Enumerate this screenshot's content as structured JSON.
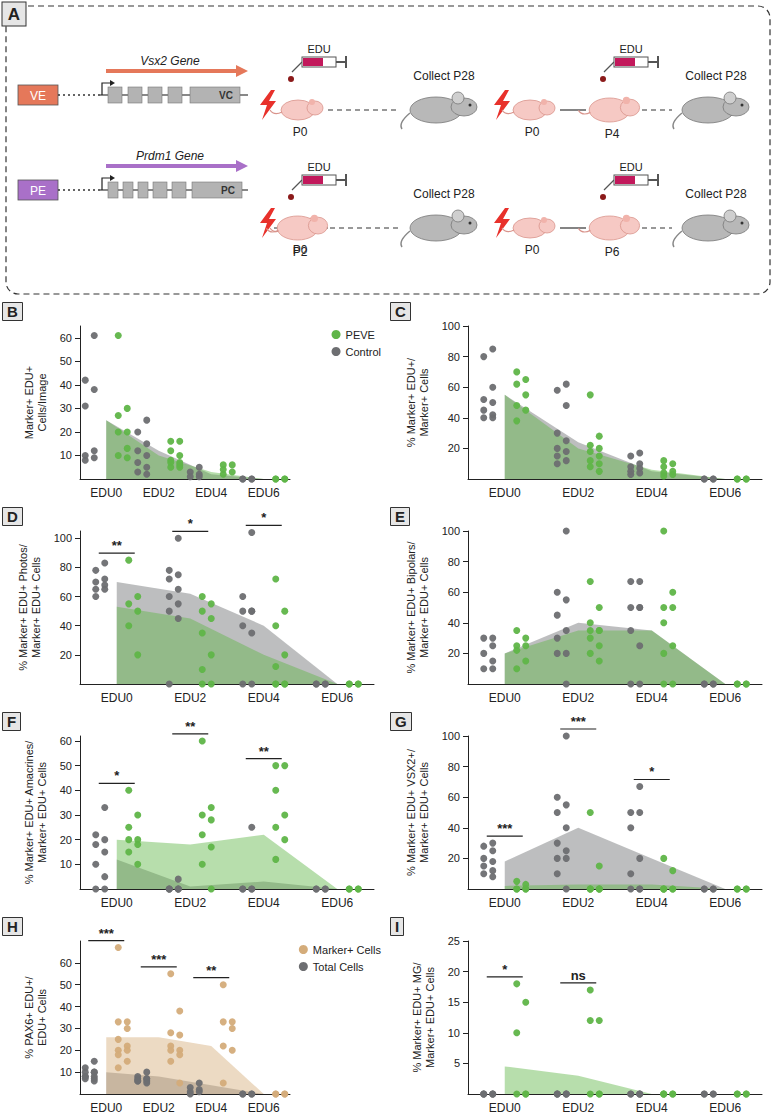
{
  "diagram": {
    "label": "A",
    "constructs": [
      {
        "enhancer": "VE",
        "gene": "Vsx2 Gene",
        "cds": "VC",
        "color": "#e5785a"
      },
      {
        "enhancer": "PE",
        "gene": "Prdm1 Gene",
        "cds": "PC",
        "color": "#a970c8"
      }
    ],
    "timelines": [
      {
        "start": "P0",
        "injection": "EDU",
        "injection_day": "P0",
        "collect": "Collect P28"
      },
      {
        "start": "P0",
        "injection": "EDU",
        "injection_day": "P4",
        "collect": "Collect P28"
      },
      {
        "start": "P0",
        "injection": "EDU",
        "injection_day": "P2",
        "collect": "Collect P28"
      },
      {
        "start": "P0",
        "injection": "EDU",
        "injection_day": "P6",
        "collect": "Collect P28"
      }
    ]
  },
  "chart_data": [
    {
      "type": "scatter",
      "panel": "B",
      "ylabel": "Marker+ EDU+\nCells/Image",
      "categories": [
        "EDU0",
        "EDU2",
        "EDU4",
        "EDU6"
      ],
      "ylim": [
        0,
        65
      ],
      "yticks": [
        10,
        20,
        30,
        40,
        50,
        60
      ],
      "grid": false,
      "legend": "top-right",
      "series": [
        {
          "name": "PEVE",
          "color": "#5fb548",
          "values": [
            [
              61,
              30,
              27,
              20,
              20,
              13,
              10,
              9
            ],
            [
              16,
              16,
              12,
              10,
              8,
              7,
              7,
              6,
              5,
              5
            ],
            [
              6,
              6,
              4,
              3,
              2
            ],
            [
              0,
              0,
              0,
              0
            ]
          ],
          "area": [
            25,
            10,
            3,
            0
          ]
        },
        {
          "name": "Control",
          "color": "#6d6e71",
          "values": [
            [
              61,
              42,
              38,
              31,
              12,
              10,
              9,
              8
            ],
            [
              25,
              20,
              15,
              12,
              10,
              7,
              5,
              3,
              2
            ],
            [
              5,
              3,
              2,
              1,
              1
            ],
            [
              0,
              0,
              0,
              0
            ]
          ],
          "area": [
            25,
            12,
            2,
            0
          ]
        }
      ],
      "annotations": []
    },
    {
      "type": "scatter",
      "panel": "C",
      "ylabel": "% Marker+ EDU+/\nMarker+ Cells",
      "categories": [
        "EDU0",
        "EDU2",
        "EDU4",
        "EDU6"
      ],
      "ylim": [
        0,
        100
      ],
      "yticks": [
        20,
        40,
        60,
        80,
        100
      ],
      "grid": false,
      "series": [
        {
          "color": "#5fb548",
          "values": [
            [
              70,
              65,
              62,
              55,
              48,
              45,
              38
            ],
            [
              55,
              28,
              22,
              20,
              18,
              15,
              12,
              10,
              8,
              5
            ],
            [
              12,
              10,
              8,
              5,
              4,
              3,
              2
            ],
            [
              0,
              0,
              0,
              0
            ]
          ],
          "area": [
            55,
            20,
            6,
            0
          ]
        },
        {
          "color": "#6d6e71",
          "values": [
            [
              85,
              80,
              60,
              52,
              50,
              45,
              42,
              40,
              40
            ],
            [
              62,
              58,
              48,
              30,
              25,
              20,
              18,
              15,
              12,
              10
            ],
            [
              17,
              15,
              10,
              8,
              7,
              5,
              4,
              3
            ],
            [
              0,
              0,
              0,
              0
            ]
          ],
          "area": [
            55,
            24,
            5,
            0
          ]
        }
      ],
      "annotations": []
    },
    {
      "type": "scatter",
      "panel": "D",
      "ylabel": "% Marker+ EDU+ Photos/\nMarker+ EDU+ Cells",
      "categories": [
        "EDU0",
        "EDU2",
        "EDU4",
        "EDU6"
      ],
      "ylim": [
        0,
        105
      ],
      "yticks": [
        20,
        40,
        60,
        80,
        100
      ],
      "grid": false,
      "series": [
        {
          "color": "#5fb548",
          "values": [
            [
              85,
              60,
              55,
              50,
              40,
              20
            ],
            [
              60,
              55,
              50,
              45,
              35,
              20,
              10,
              0,
              0
            ],
            [
              72,
              50,
              40,
              20,
              12,
              0,
              0,
              0,
              0
            ],
            [
              0,
              0,
              0,
              0
            ]
          ],
          "area": [
            53,
            45,
            20,
            0
          ]
        },
        {
          "color": "#6d6e71",
          "values": [
            [
              83,
              78,
              72,
              70,
              68,
              65,
              65,
              60
            ],
            [
              100,
              78,
              75,
              72,
              65,
              60,
              55,
              50,
              45,
              0
            ],
            [
              104,
              60,
              50,
              50,
              50,
              40,
              35,
              0,
              0
            ],
            [
              0,
              0,
              0,
              0
            ]
          ],
          "area": [
            70,
            62,
            40,
            0
          ]
        }
      ],
      "annotations": [
        {
          "category": "EDU0",
          "label": "**"
        },
        {
          "category": "EDU2",
          "label": "*"
        },
        {
          "category": "EDU4",
          "label": "*"
        }
      ]
    },
    {
      "type": "scatter",
      "panel": "E",
      "ylabel": "% Marker+ EDU+ Bipolars/\nMarker+ EDU+ Cells",
      "categories": [
        "EDU0",
        "EDU2",
        "EDU4",
        "EDU6"
      ],
      "ylim": [
        0,
        100
      ],
      "yticks": [
        20,
        40,
        60,
        80,
        100
      ],
      "grid": false,
      "series": [
        {
          "color": "#5fb548",
          "values": [
            [
              35,
              30,
              25,
              25,
              22,
              15,
              10
            ],
            [
              67,
              50,
              40,
              35,
              35,
              35,
              30,
              25,
              20,
              15
            ],
            [
              100,
              60,
              50,
              50,
              40,
              25,
              20,
              0,
              0
            ],
            [
              0,
              0,
              0,
              0
            ]
          ],
          "area": [
            20,
            35,
            35,
            0
          ]
        },
        {
          "color": "#6d6e71",
          "values": [
            [
              30,
              30,
              25,
              20,
              15,
              10,
              10
            ],
            [
              100,
              60,
              55,
              45,
              35,
              30,
              20,
              20,
              0
            ],
            [
              67,
              67,
              50,
              50,
              50,
              35,
              25,
              0,
              0
            ],
            [
              0,
              0,
              0,
              0
            ]
          ],
          "area": [
            20,
            40,
            35,
            0
          ]
        }
      ],
      "annotations": []
    },
    {
      "type": "scatter",
      "panel": "F",
      "ylabel": "% Marker+ EDU+ Amacrines/\nMarker+ EDU+ Cells",
      "categories": [
        "EDU0",
        "EDU2",
        "EDU4",
        "EDU6"
      ],
      "ylim": [
        0,
        62
      ],
      "yticks": [
        10,
        20,
        30,
        40,
        50,
        60
      ],
      "grid": false,
      "series": [
        {
          "color": "#5fb548",
          "values": [
            [
              40,
              30,
              25,
              20,
              20,
              18,
              15,
              10
            ],
            [
              60,
              33,
              30,
              28,
              22,
              17,
              10,
              0
            ],
            [
              50,
              50,
              40,
              30,
              25,
              20,
              12
            ],
            [
              0,
              0,
              0,
              0
            ]
          ],
          "area": [
            20,
            18,
            22,
            0
          ]
        },
        {
          "color": "#6d6e71",
          "values": [
            [
              33,
              22,
              20,
              18,
              15,
              10,
              5,
              0,
              0
            ],
            [
              4,
              0,
              0,
              0,
              0,
              0,
              0
            ],
            [
              25,
              0,
              0,
              0,
              0
            ],
            [
              0,
              0,
              0,
              0
            ]
          ],
          "area": [
            12,
            1,
            3,
            0
          ]
        }
      ],
      "annotations": [
        {
          "category": "EDU0",
          "label": "*"
        },
        {
          "category": "EDU2",
          "label": "**"
        },
        {
          "category": "EDU4",
          "label": "**"
        }
      ]
    },
    {
      "type": "scatter",
      "panel": "G",
      "ylabel": "% Marker+ EDU+ VSX2+/\nMarker+ EDU+ Cells",
      "categories": [
        "EDU0",
        "EDU2",
        "EDU4",
        "EDU6"
      ],
      "ylim": [
        0,
        100
      ],
      "yticks": [
        20,
        40,
        60,
        80,
        100
      ],
      "grid": false,
      "series": [
        {
          "color": "#5fb548",
          "values": [
            [
              5,
              3,
              0,
              0,
              0,
              0
            ],
            [
              50,
              15,
              0,
              0,
              0,
              0,
              0,
              0
            ],
            [
              20,
              12,
              0,
              0,
              0,
              0,
              0
            ],
            [
              0,
              0,
              0,
              0
            ]
          ],
          "area": [
            2,
            3,
            3,
            0
          ]
        },
        {
          "color": "#6d6e71",
          "values": [
            [
              30,
              28,
              25,
              20,
              18,
              15,
              12,
              10,
              8
            ],
            [
              100,
              60,
              55,
              50,
              40,
              30,
              25,
              20,
              20,
              10,
              0
            ],
            [
              67,
              50,
              50,
              40,
              20,
              10,
              0,
              0,
              0
            ],
            [
              0,
              0,
              0,
              0
            ]
          ],
          "area": [
            18,
            40,
            20,
            0
          ]
        }
      ],
      "annotations": [
        {
          "category": "EDU0",
          "label": "***"
        },
        {
          "category": "EDU2",
          "label": "***"
        },
        {
          "category": "EDU4",
          "label": "*"
        }
      ]
    },
    {
      "type": "scatter",
      "panel": "H",
      "ylabel": "% PAX6+ EDU+/\nEDU+ Cells",
      "categories": [
        "EDU0",
        "EDU2",
        "EDU4",
        "EDU6"
      ],
      "ylim": [
        0,
        70
      ],
      "yticks": [
        10,
        20,
        30,
        40,
        50,
        60
      ],
      "grid": false,
      "legend": "top-right",
      "series": [
        {
          "name": "Marker+ Cells",
          "color": "#d4ac7a",
          "values": [
            [
              67,
              33,
              33,
              30,
              25,
              22,
              20,
              20,
              18,
              15,
              12
            ],
            [
              55,
              38,
              28,
              27,
              22,
              20,
              20,
              18,
              15,
              5
            ],
            [
              50,
              33,
              33,
              30,
              22,
              20,
              5
            ],
            [
              0,
              0,
              0,
              0
            ]
          ],
          "area": [
            26,
            26,
            22,
            0
          ]
        },
        {
          "name": "Total Cells",
          "color": "#6d6e71",
          "values": [
            [
              15,
              12,
              10,
              10,
              10,
              8,
              8,
              8,
              7,
              7,
              6
            ],
            [
              10,
              8,
              7,
              7,
              7,
              6,
              6,
              6,
              5
            ],
            [
              5,
              3,
              2,
              1,
              1,
              0
            ],
            [
              0,
              0,
              0,
              0
            ]
          ],
          "area": [
            10,
            8,
            4,
            0
          ]
        }
      ],
      "annotations": [
        {
          "category": "EDU0",
          "label": "***"
        },
        {
          "category": "EDU2",
          "label": "***"
        },
        {
          "category": "EDU4",
          "label": "**"
        }
      ]
    },
    {
      "type": "scatter",
      "panel": "I",
      "ylabel": "% Marker+ EDU+ MG/\nMarker+ EDU+ Cells",
      "categories": [
        "EDU0",
        "EDU2",
        "EDU4",
        "EDU6"
      ],
      "ylim": [
        0,
        25
      ],
      "yticks": [
        5,
        10,
        15,
        20,
        25
      ],
      "grid": false,
      "series": [
        {
          "color": "#5fb548",
          "values": [
            [
              18,
              15,
              10,
              0,
              0,
              0
            ],
            [
              17,
              12,
              12,
              0,
              0,
              0
            ],
            [
              0,
              0,
              0,
              0,
              0
            ],
            [
              0,
              0,
              0,
              0
            ]
          ],
          "area": [
            4.5,
            3,
            0,
            0
          ]
        },
        {
          "color": "#6d6e71",
          "values": [
            [
              0,
              0,
              0,
              0,
              0,
              0
            ],
            [
              0,
              0,
              0,
              0,
              0,
              0
            ],
            [
              0,
              0,
              0,
              0,
              0
            ],
            [
              0,
              0,
              0,
              0
            ]
          ],
          "area": [
            0,
            0,
            0,
            0
          ]
        }
      ],
      "annotations": [
        {
          "category": "EDU0",
          "label": "*"
        },
        {
          "category": "EDU2",
          "label": "ns"
        }
      ]
    }
  ]
}
